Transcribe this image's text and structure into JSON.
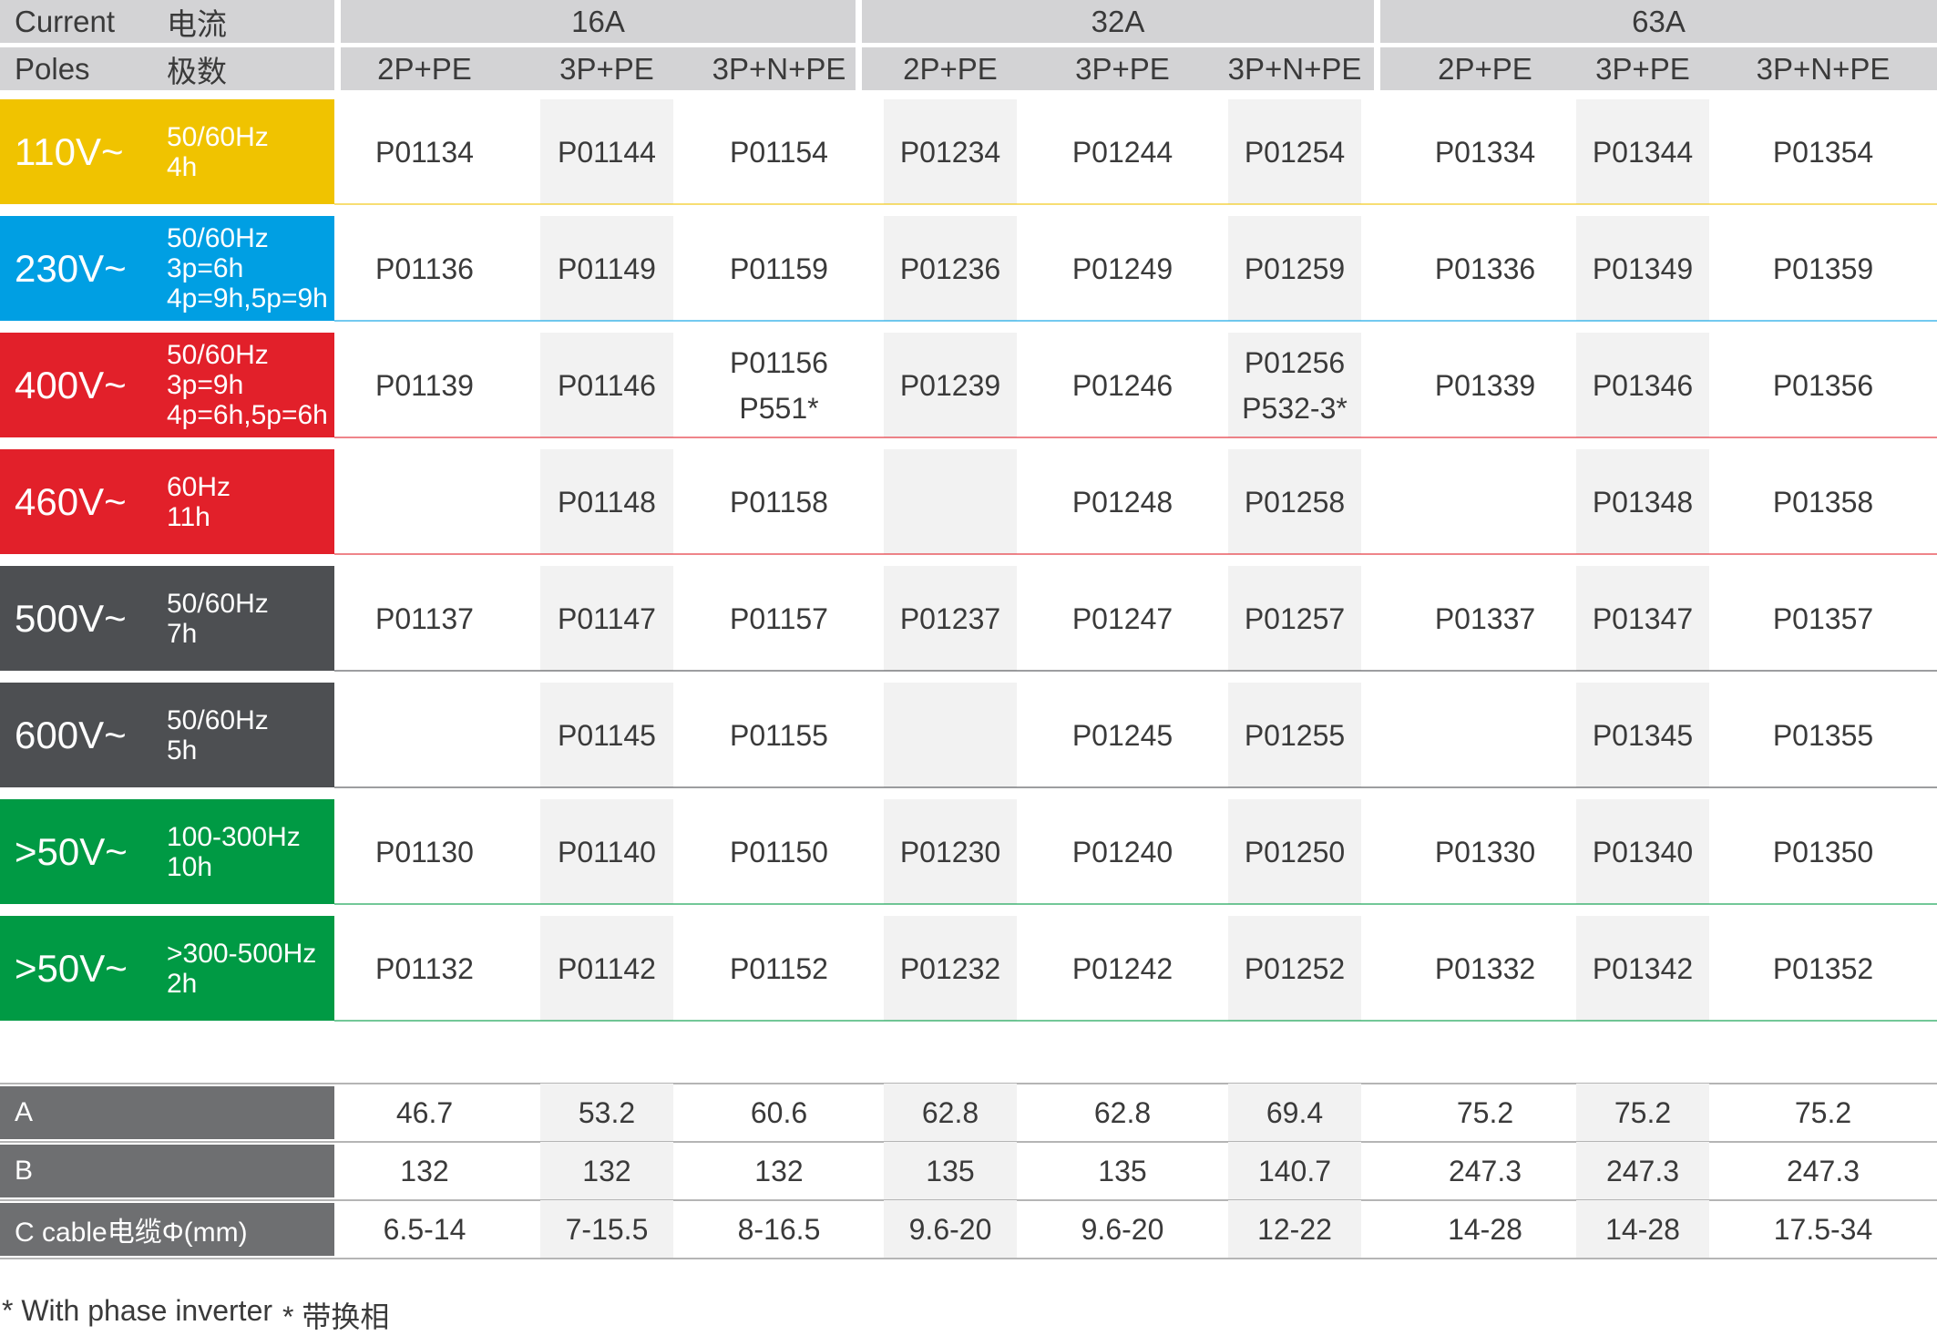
{
  "header": {
    "current_label": "Current",
    "current_label_cn": "电流",
    "poles_label": "Poles",
    "poles_label_cn": "极数",
    "groups": [
      "16A",
      "32A",
      "63A"
    ],
    "poles": [
      "2P+PE",
      "3P+PE",
      "3P+N+PE",
      "2P+PE",
      "3P+PE",
      "3P+N+PE",
      "2P+PE",
      "3P+PE",
      "3P+N+PE"
    ]
  },
  "rows": [
    {
      "voltage": "110V~",
      "freq": [
        "50/60Hz",
        "4h"
      ],
      "color": "#f0c300",
      "codes": [
        [
          "P01134"
        ],
        [
          "P01144"
        ],
        [
          "P01154"
        ],
        [
          "P01234"
        ],
        [
          "P01244"
        ],
        [
          "P01254"
        ],
        [
          "P01334"
        ],
        [
          "P01344"
        ],
        [
          "P01354"
        ]
      ]
    },
    {
      "voltage": "230V~",
      "freq": [
        "50/60Hz",
        "3p=6h",
        "4p=9h,5p=9h"
      ],
      "color": "#009fe3",
      "codes": [
        [
          "P01136"
        ],
        [
          "P01149"
        ],
        [
          "P01159"
        ],
        [
          "P01236"
        ],
        [
          "P01249"
        ],
        [
          "P01259"
        ],
        [
          "P01336"
        ],
        [
          "P01349"
        ],
        [
          "P01359"
        ]
      ]
    },
    {
      "voltage": "400V~",
      "freq": [
        "50/60Hz",
        "3p=9h",
        "4p=6h,5p=6h"
      ],
      "color": "#e2202a",
      "codes": [
        [
          "P01139"
        ],
        [
          "P01146"
        ],
        [
          "P01156",
          "P551*"
        ],
        [
          "P01239"
        ],
        [
          "P01246"
        ],
        [
          "P01256",
          "P532-3*"
        ],
        [
          "P01339"
        ],
        [
          "P01346"
        ],
        [
          "P01356"
        ]
      ]
    },
    {
      "voltage": "460V~",
      "freq": [
        "60Hz",
        "11h"
      ],
      "color": "#e2202a",
      "codes": [
        [],
        [
          "P01148"
        ],
        [
          "P01158"
        ],
        [],
        [
          "P01248"
        ],
        [
          "P01258"
        ],
        [],
        [
          "P01348"
        ],
        [
          "P01358"
        ]
      ]
    },
    {
      "voltage": "500V~",
      "freq": [
        "50/60Hz",
        "7h"
      ],
      "color": "#4d4f52",
      "codes": [
        [
          "P01137"
        ],
        [
          "P01147"
        ],
        [
          "P01157"
        ],
        [
          "P01237"
        ],
        [
          "P01247"
        ],
        [
          "P01257"
        ],
        [
          "P01337"
        ],
        [
          "P01347"
        ],
        [
          "P01357"
        ]
      ]
    },
    {
      "voltage": "600V~",
      "freq": [
        "50/60Hz",
        "5h"
      ],
      "color": "#4d4f52",
      "codes": [
        [],
        [
          "P01145"
        ],
        [
          "P01155"
        ],
        [],
        [
          "P01245"
        ],
        [
          "P01255"
        ],
        [],
        [
          "P01345"
        ],
        [
          "P01355"
        ]
      ]
    },
    {
      "voltage": ">50V~",
      "freq": [
        "100-300Hz",
        "10h"
      ],
      "color": "#009a44",
      "codes": [
        [
          "P01130"
        ],
        [
          "P01140"
        ],
        [
          "P01150"
        ],
        [
          "P01230"
        ],
        [
          "P01240"
        ],
        [
          "P01250"
        ],
        [
          "P01330"
        ],
        [
          "P01340"
        ],
        [
          "P01350"
        ]
      ]
    },
    {
      "voltage": ">50V~",
      "freq": [
        ">300-500Hz",
        "2h"
      ],
      "color": "#009a44",
      "codes": [
        [
          "P01132"
        ],
        [
          "P01142"
        ],
        [
          "P01152"
        ],
        [
          "P01232"
        ],
        [
          "P01242"
        ],
        [
          "P01252"
        ],
        [
          "P01332"
        ],
        [
          "P01342"
        ],
        [
          "P01352"
        ]
      ]
    }
  ],
  "dimensions": [
    {
      "label": "A",
      "values": [
        "46.7",
        "53.2",
        "60.6",
        "62.8",
        "62.8",
        "69.4",
        "75.2",
        "75.2",
        "75.2"
      ]
    },
    {
      "label": "B",
      "values": [
        "132",
        "132",
        "132",
        "135",
        "135",
        "140.7",
        "247.3",
        "247.3",
        "247.3"
      ]
    },
    {
      "label": "C  cable电缆Φ(mm)",
      "values": [
        "6.5-14",
        "7-15.5",
        "8-16.5",
        "9.6-20",
        "9.6-20",
        "12-22",
        "14-28",
        "14-28",
        "17.5-34"
      ]
    }
  ],
  "footnote": {
    "en": "* With phase inverter",
    "cn": "* 带换相"
  }
}
